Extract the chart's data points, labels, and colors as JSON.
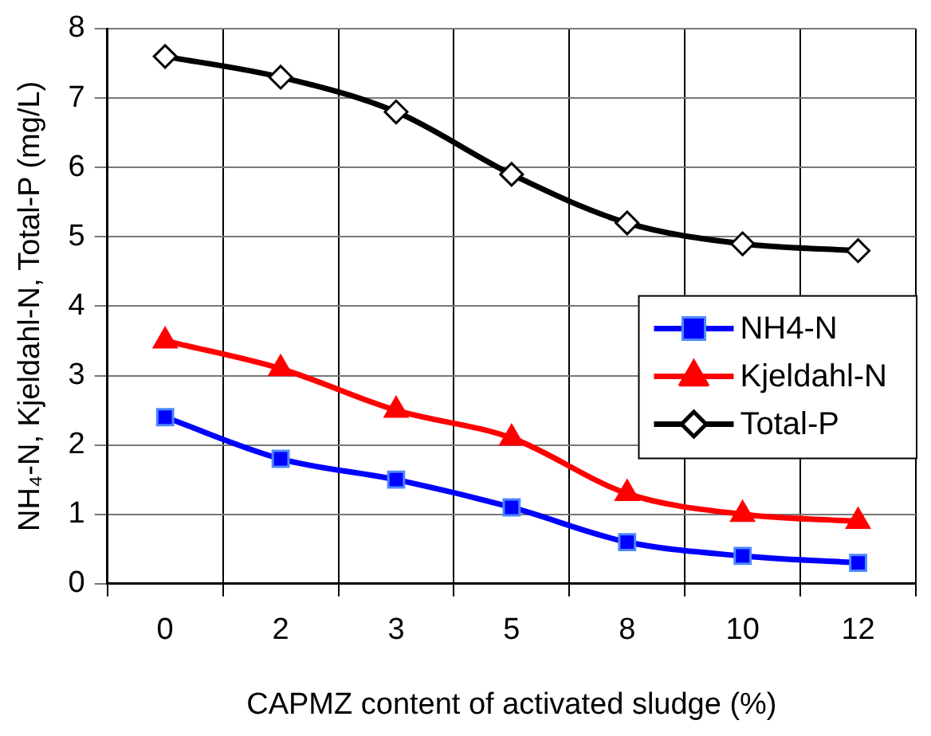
{
  "chart_data": {
    "type": "line",
    "xlabel": "CAPMZ content of activated sludge (%)",
    "ylabel": "NH₄-N, Kjeldahl-N, Total-P (mg/L)",
    "categories": [
      "0",
      "2",
      "3",
      "5",
      "8",
      "10",
      "12"
    ],
    "series": [
      {
        "name": "NH4-N",
        "color": "#0000ff",
        "marker": "square",
        "values": [
          2.4,
          1.8,
          1.5,
          1.1,
          0.6,
          0.4,
          0.3
        ]
      },
      {
        "name": "Kjeldahl-N",
        "color": "#ff0000",
        "marker": "triangle",
        "values": [
          3.5,
          3.1,
          2.5,
          2.1,
          1.3,
          1.0,
          0.9
        ]
      },
      {
        "name": "Total-P",
        "color": "#000000",
        "marker": "diamond",
        "values": [
          7.6,
          7.3,
          6.8,
          5.9,
          5.2,
          4.9,
          4.8
        ]
      }
    ],
    "ylim": [
      0,
      8
    ],
    "yticks": [
      0,
      1,
      2,
      3,
      4,
      5,
      6,
      7,
      8
    ],
    "grid": true,
    "legend": "right",
    "line_style": "solid"
  }
}
